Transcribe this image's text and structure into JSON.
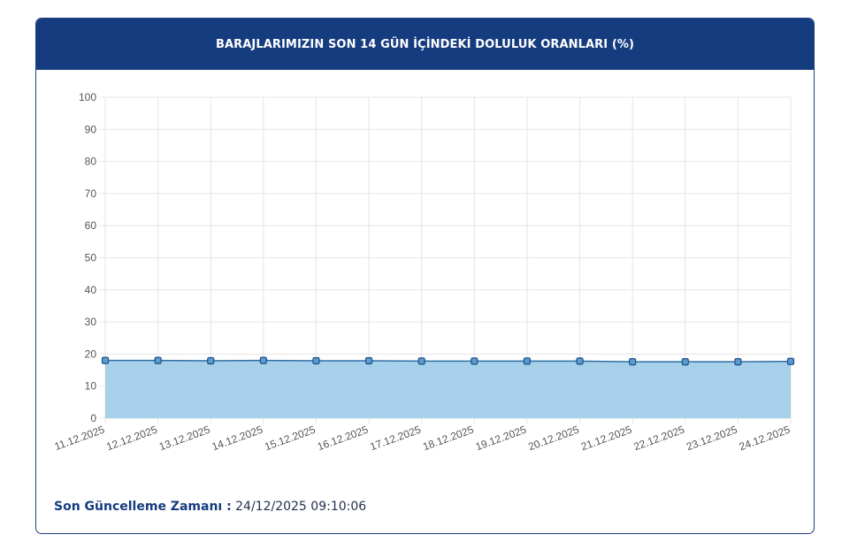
{
  "header": {
    "title": "BARAJLARIMIZIN SON 14 GÜN İÇİNDEKİ DOLULUK ORANLARI (%)"
  },
  "footer": {
    "label": "Son Güncelleme Zamanı :",
    "value": "24/12/2025 09:10:06"
  },
  "colors": {
    "header_bg": "#163c80",
    "area_fill": "#a7d0ea",
    "line": "#2e6fa6",
    "point_fill": "#5a9bd0",
    "point_stroke": "#1d4f86",
    "grid": "#e4e4e4",
    "tick_text": "#555555"
  },
  "chart_data": {
    "type": "area",
    "title": "",
    "xlabel": "",
    "ylabel": "",
    "ylim": [
      0,
      100
    ],
    "yticks": [
      0,
      10,
      20,
      30,
      40,
      50,
      60,
      70,
      80,
      90,
      100
    ],
    "grid": true,
    "categories": [
      "11.12.2025",
      "12.12.2025",
      "13.12.2025",
      "14.12.2025",
      "15.12.2025",
      "16.12.2025",
      "17.12.2025",
      "18.12.2025",
      "19.12.2025",
      "20.12.2025",
      "21.12.2025",
      "22.12.2025",
      "23.12.2025",
      "24.12.2025"
    ],
    "series": [
      {
        "values": [
          18.0,
          18.0,
          17.9,
          18.0,
          17.9,
          17.9,
          17.8,
          17.8,
          17.8,
          17.8,
          17.6,
          17.6,
          17.6,
          17.7
        ]
      }
    ]
  }
}
